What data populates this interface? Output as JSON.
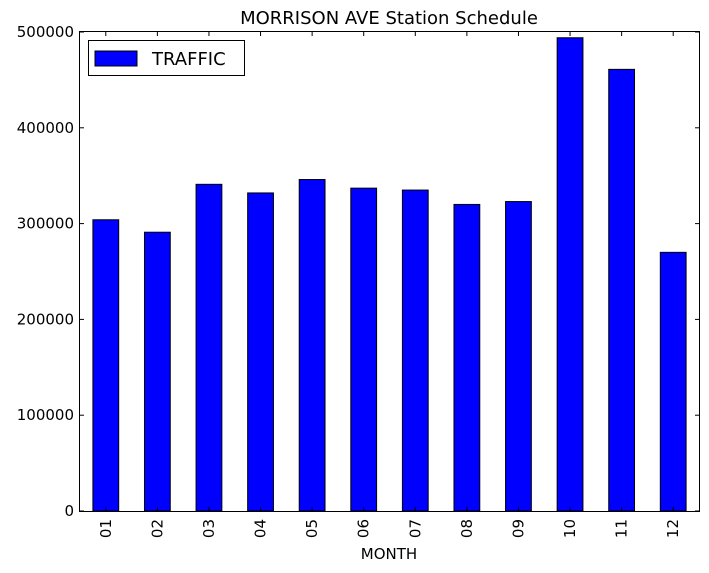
{
  "chart_data": {
    "type": "bar",
    "title": "MORRISON AVE Station Schedule",
    "xlabel": "MONTH",
    "ylabel": "",
    "categories": [
      "01",
      "02",
      "03",
      "04",
      "05",
      "06",
      "07",
      "08",
      "09",
      "10",
      "11",
      "12"
    ],
    "series": [
      {
        "name": "TRAFFIC",
        "color": "#0000ff",
        "values": [
          304000,
          291000,
          341000,
          332000,
          346000,
          337000,
          335000,
          320000,
          323000,
          494000,
          461000,
          270000
        ]
      }
    ],
    "ylim": [
      0,
      500000
    ],
    "yticks": [
      0,
      100000,
      200000,
      300000,
      400000,
      500000
    ],
    "ytick_labels": [
      "0",
      "100000",
      "200000",
      "300000",
      "400000",
      "500000"
    ],
    "legend_position": "top-left",
    "grid": false
  }
}
